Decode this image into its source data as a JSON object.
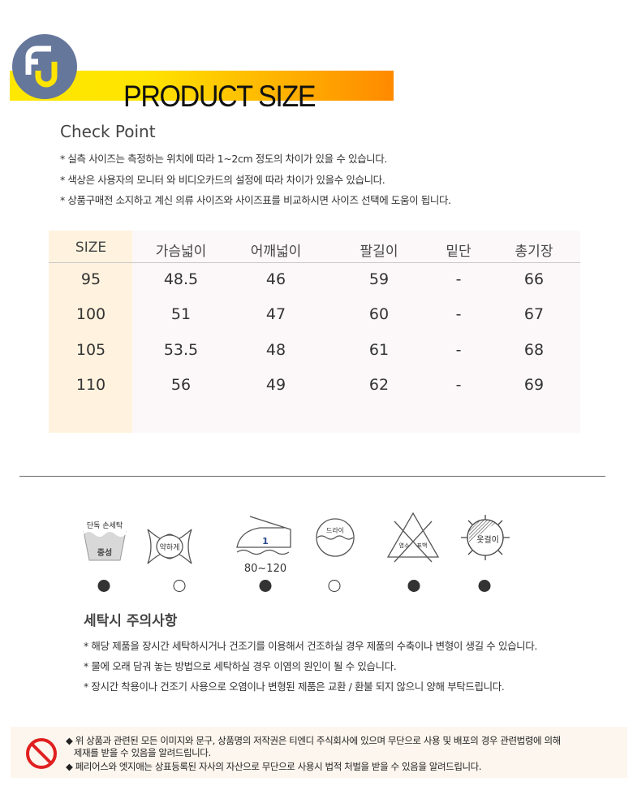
{
  "header": {
    "logo_text": "FU",
    "title": "PRODUCT SIZE",
    "gradient": [
      "#ffe800",
      "#ff8a00"
    ],
    "logo_color": "#66779c"
  },
  "check_point": {
    "title": "Check Point",
    "notes": [
      "* 실측 사이즈는 측정하는 위치에 따라 1~2cm 정도의 차이가 있을 수 있습니다.",
      "* 색상은 사용자의 모니터 와 비디오카드의 설정에 따라 차이가 있을수 있습니다.",
      "* 상품구매전 소지하고 계신 의류 사이즈와 사이즈표를 비교하시면 사이즈 선택에 도움이 됩니다."
    ]
  },
  "size_table": {
    "headers": [
      "SIZE",
      "가슴넓이",
      "어깨넓이",
      "팔길이",
      "밑단",
      "총기장"
    ],
    "rows": [
      [
        "95",
        "48.5",
        "46",
        "59",
        "-",
        "66"
      ],
      [
        "100",
        "51",
        "47",
        "60",
        "-",
        "67"
      ],
      [
        "105",
        "53.5",
        "48",
        "61",
        "-",
        "68"
      ],
      [
        "110",
        "56",
        "49",
        "62",
        "-",
        "69"
      ]
    ]
  },
  "care_icons": [
    {
      "icon": "hand-wash-icon",
      "labels": [
        "단독 손세탁",
        "중성"
      ],
      "selected": true
    },
    {
      "icon": "wring-gently-icon",
      "labels": [
        "약하게"
      ],
      "selected": false
    },
    {
      "icon": "iron-icon",
      "labels": [
        "1",
        "80~120"
      ],
      "selected": true
    },
    {
      "icon": "dry-clean-icon",
      "labels": [
        "드라이"
      ],
      "selected": false
    },
    {
      "icon": "no-bleach-icon",
      "labels": [
        "염소",
        "표백"
      ],
      "selected": true
    },
    {
      "icon": "shade-dry-hanger-icon",
      "labels": [
        "옷걸이"
      ],
      "selected": true
    }
  ],
  "care": {
    "title": "세탁시 주의사항",
    "notes": [
      "* 해당 제품을 장시간 세탁하시거나 건조기를 이용해서 건조하실 경우 제품의 수축이나 변형이 생길 수 있습니다.",
      "* 물에 오래 담궈 놓는 방법으로 세탁하실 경우 이염의 원인이 될 수 있습니다.",
      "* 장시간 착용이나 건조기 사용으로 오염이나 변형된 제품은 교환 / 환불 되지 않으니 양해 부탁드립니다."
    ]
  },
  "footer": {
    "lines": [
      "◆ 위 상품과 관련된 모든 이미지와 문구, 상품명의 저작권은 티엔디 주식회사에 있으며 무단으로 사용 및 배포의 경우 관련법령에 의해",
      "   제재를 받을 수 있음을 알려드립니다.",
      "◆ 페리어스와 엣지애는 상표등록된  자사의 자산으로 무단으로 사용시 법적 처벌을 받을 수 있음을 알려드립니다."
    ]
  }
}
